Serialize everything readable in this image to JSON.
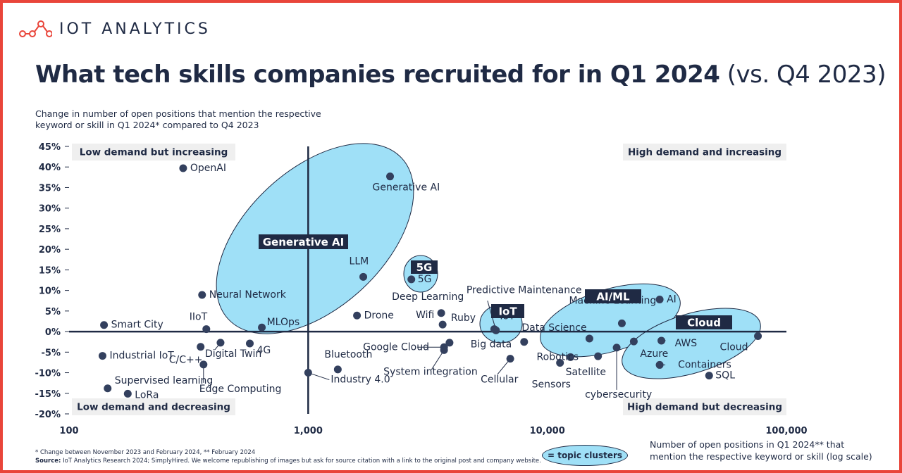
{
  "brand": {
    "name": "IOT ANALYTICS"
  },
  "title": {
    "main": "What tech skills companies recruited for in Q1 2024",
    "suffix": " (vs. Q4 2023)"
  },
  "subtitle": "Change in number of open positions that mention the respective keyword or skill in Q1 2024* compared to Q4 2023",
  "footnote": {
    "line1": "* Change between November 2023 and February 2024, ** February 2024",
    "source_label": "Source:",
    "source_text": " IoT Analytics Research 2024; SimplyHired. We welcome republishing of images but ask for source citation with a link to the original post and company website."
  },
  "x_caption": "Number of open positions in Q1 2024** that mention the respective keyword or skill (log scale)",
  "legend": {
    "label": "= topic clusters"
  },
  "colors": {
    "accent": "#9fe0f7",
    "navy": "#1f2a44",
    "border": "#e9453a",
    "quadrant_bg": "#efefef"
  },
  "chart_data": {
    "type": "scatter",
    "x_scale": "log",
    "xlim": [
      100,
      100000
    ],
    "ylim": [
      -20,
      45
    ],
    "x_ticks": [
      100,
      1000,
      10000,
      100000
    ],
    "x_tick_labels": [
      "100",
      "1,000",
      "10,000",
      "100,000"
    ],
    "y_ticks": [
      45,
      40,
      35,
      30,
      25,
      20,
      15,
      10,
      5,
      0,
      -5,
      -10,
      -15,
      -20
    ],
    "y_tick_labels": [
      "45%",
      "40%",
      "35%",
      "30%",
      "25%",
      "20%",
      "15%",
      "10%",
      "5%",
      "0%",
      "-5%",
      "-10%",
      "-15%",
      "-20%"
    ],
    "divider_x": 1000,
    "divider_y": 0,
    "quadrants": {
      "top_left": "Low demand but increasing",
      "top_right": "High demand and increasing",
      "bottom_left": "Low demand and decreasing",
      "bottom_right": "High demand but decreasing"
    },
    "points": [
      {
        "label": "OpenAI",
        "x": 300,
        "y": 39.7
      },
      {
        "label": "Generative AI",
        "x": 2200,
        "y": 37.7
      },
      {
        "label": "Neural Network",
        "x": 360,
        "y": 8.9
      },
      {
        "label": "LLM",
        "x": 1700,
        "y": 13.3
      },
      {
        "label": "5G",
        "x": 2700,
        "y": 12.7
      },
      {
        "label": "Drone",
        "x": 1600,
        "y": 3.9
      },
      {
        "label": "Deep Learning",
        "x": 3600,
        "y": 4.5
      },
      {
        "label": "Wifi",
        "x": 3650,
        "y": 1.7
      },
      {
        "label": "Ruby",
        "x": 3900,
        "y": -2.7
      },
      {
        "label": "Google Cloud",
        "x": 3700,
        "y": -3.8
      },
      {
        "label": "System integration",
        "x": 3700,
        "y": -4.5
      },
      {
        "label": "IoT",
        "x": 6000,
        "y": 0.6
      },
      {
        "label": "Predictive Maintenance",
        "x": 6100,
        "y": 0.3
      },
      {
        "label": "Big data",
        "x": 8000,
        "y": -2.5
      },
      {
        "label": "Cellular",
        "x": 7000,
        "y": -6.6
      },
      {
        "label": "Data Science",
        "x": 15000,
        "y": -1.7
      },
      {
        "label": "Machine Learning",
        "x": 20500,
        "y": 2.0
      },
      {
        "label": "AI",
        "x": 29500,
        "y": 7.8
      },
      {
        "label": "Robotics",
        "x": 12500,
        "y": -6.2
      },
      {
        "label": "Sensors",
        "x": 11300,
        "y": -7.6
      },
      {
        "label": "Satellite",
        "x": 16300,
        "y": -6.0
      },
      {
        "label": "cybersecurity",
        "x": 19500,
        "y": -3.9
      },
      {
        "label": "Azure",
        "x": 23000,
        "y": -2.4
      },
      {
        "label": "AWS",
        "x": 30000,
        "y": -2.2
      },
      {
        "label": "Containers",
        "x": 29500,
        "y": -8.1
      },
      {
        "label": "SQL",
        "x": 47500,
        "y": -10.7
      },
      {
        "label": "Cloud",
        "x": 76000,
        "y": -1.1
      },
      {
        "label": "Smart City",
        "x": 140,
        "y": 1.6
      },
      {
        "label": "IIoT",
        "x": 375,
        "y": 0.6
      },
      {
        "label": "MLOps",
        "x": 640,
        "y": 1.0
      },
      {
        "label": "Industrial IoT",
        "x": 138,
        "y": -5.9
      },
      {
        "label": "C/C++",
        "x": 355,
        "y": -3.7
      },
      {
        "label": "Digital Twin",
        "x": 430,
        "y": -2.7
      },
      {
        "label": "Edge Computing",
        "x": 365,
        "y": -8.0
      },
      {
        "label": "4G",
        "x": 570,
        "y": -2.9
      },
      {
        "label": "Supervised learning",
        "x": 145,
        "y": -13.8
      },
      {
        "label": "LoRa",
        "x": 176,
        "y": -15.1
      },
      {
        "label": "Bluetooth",
        "x": 1330,
        "y": -9.2
      },
      {
        "label": "Industry 4.0",
        "x": 1000,
        "y": -10.0
      }
    ],
    "clusters": [
      {
        "label": "Generative AI"
      },
      {
        "label": "5G"
      },
      {
        "label": "IoT"
      },
      {
        "label": "AI/ML"
      },
      {
        "label": "Cloud"
      }
    ]
  }
}
